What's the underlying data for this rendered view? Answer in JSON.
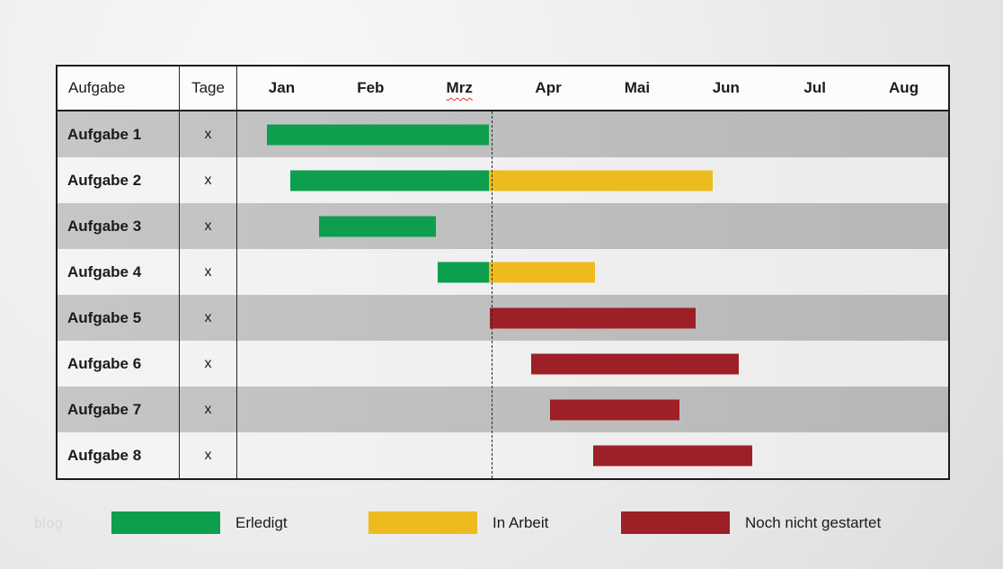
{
  "watermark": "blog",
  "table_header": {
    "task": "Aufgabe",
    "days": "Tage"
  },
  "colors": {
    "done": "#0d9e4e",
    "in_progress": "#eebb1f",
    "not_started": "#9c2025",
    "row_stripe_dark": "#bfbfbf",
    "row_stripe_light": "#f2f2f2",
    "border": "#1c1c1c",
    "misspell_underline": "#e0312e"
  },
  "chart_data": {
    "type": "gantt",
    "months": [
      "Jan",
      "Feb",
      "Mrz",
      "Apr",
      "Mai",
      "Jun",
      "Jul",
      "Aug"
    ],
    "misspelled_month_index": 2,
    "today_line_month": 2.85,
    "tasks": [
      {
        "label": "Aufgabe 1",
        "days": "x",
        "segments": [
          {
            "status": "done",
            "start_month": 0.33,
            "end_month": 2.83
          }
        ]
      },
      {
        "label": "Aufgabe 2",
        "days": "x",
        "segments": [
          {
            "status": "done",
            "start_month": 0.6,
            "end_month": 2.83
          },
          {
            "status": "in_progress",
            "start_month": 2.83,
            "end_month": 5.35
          }
        ]
      },
      {
        "label": "Aufgabe 3",
        "days": "x",
        "segments": [
          {
            "status": "done",
            "start_month": 0.92,
            "end_month": 2.24
          }
        ]
      },
      {
        "label": "Aufgabe 4",
        "days": "x",
        "segments": [
          {
            "status": "done",
            "start_month": 2.26,
            "end_month": 2.83
          },
          {
            "status": "in_progress",
            "start_month": 2.83,
            "end_month": 4.03
          }
        ]
      },
      {
        "label": "Aufgabe 5",
        "days": "x",
        "segments": [
          {
            "status": "not_started",
            "start_month": 2.84,
            "end_month": 5.16
          }
        ]
      },
      {
        "label": "Aufgabe 6",
        "days": "x",
        "segments": [
          {
            "status": "not_started",
            "start_month": 3.31,
            "end_month": 5.64
          }
        ]
      },
      {
        "label": "Aufgabe 7",
        "days": "x",
        "segments": [
          {
            "status": "not_started",
            "start_month": 3.52,
            "end_month": 4.98
          }
        ]
      },
      {
        "label": "Aufgabe 8",
        "days": "x",
        "segments": [
          {
            "status": "not_started",
            "start_month": 4.0,
            "end_month": 5.8
          }
        ]
      }
    ],
    "legend": [
      {
        "status": "done",
        "label": "Erledigt"
      },
      {
        "status": "in_progress",
        "label": "In Arbeit"
      },
      {
        "status": "not_started",
        "label": "Noch nicht gestartet"
      }
    ]
  }
}
